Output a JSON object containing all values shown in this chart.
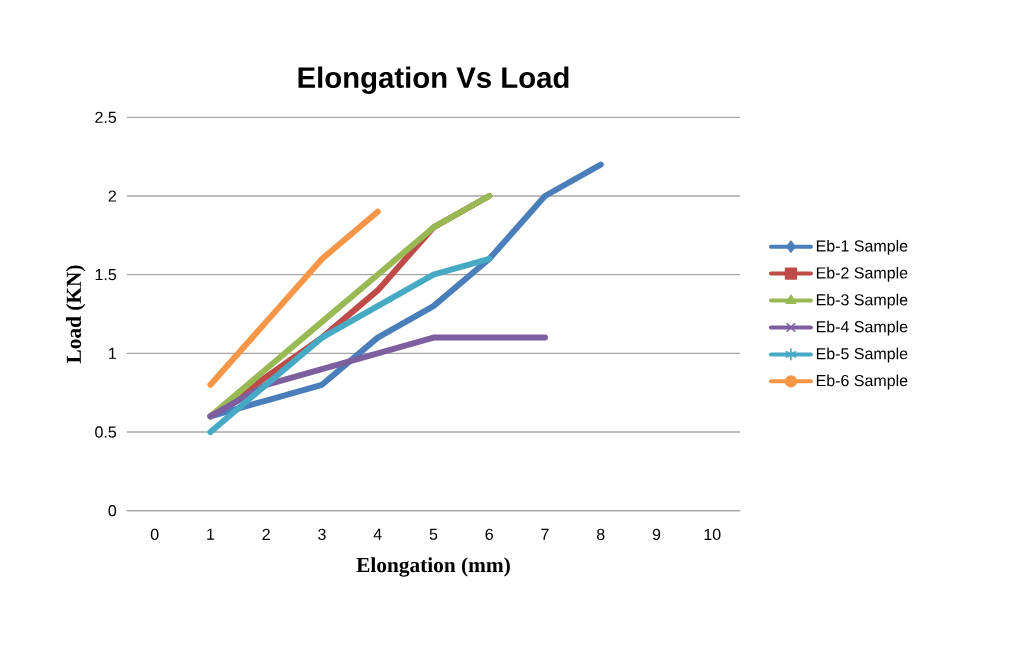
{
  "chart_data": {
    "type": "line",
    "title": "Elongation Vs Load",
    "xlabel": "Elongation (mm)",
    "ylabel": "Load (KN)",
    "categories": [
      "0",
      "1",
      "2",
      "3",
      "4",
      "5",
      "6",
      "7",
      "8",
      "9",
      "10"
    ],
    "series": [
      {
        "name": "Eb-1 Sample",
        "color": "#4a7ebb",
        "values": [
          null,
          0.6,
          0.7,
          0.8,
          1.1,
          1.3,
          1.6,
          2.0,
          2.2,
          null,
          null
        ]
      },
      {
        "name": "Eb-2 Sample",
        "color": "#be4b48",
        "values": [
          null,
          0.6,
          0.85,
          1.1,
          1.4,
          1.8,
          2.0,
          null,
          null,
          null,
          null
        ]
      },
      {
        "name": "Eb-3 Sample",
        "color": "#98b954",
        "values": [
          null,
          0.6,
          0.9,
          1.2,
          1.5,
          1.8,
          2.0,
          null,
          null,
          null,
          null
        ]
      },
      {
        "name": "Eb-4 Sample",
        "color": "#7d5fa0",
        "values": [
          null,
          0.6,
          0.8,
          0.9,
          1.0,
          1.1,
          1.1,
          1.1,
          null,
          null,
          null
        ]
      },
      {
        "name": "Eb-5 Sample",
        "color": "#46aac5",
        "values": [
          null,
          0.5,
          0.8,
          1.1,
          1.3,
          1.5,
          1.6,
          null,
          null,
          null,
          null
        ]
      },
      {
        "name": "Eb-6 Sample",
        "color": "#f79646",
        "values": [
          null,
          0.8,
          1.2,
          1.6,
          1.9,
          null,
          null,
          null,
          null,
          null,
          null
        ]
      }
    ],
    "ylim": [
      0,
      2.5
    ],
    "yticks": [
      0,
      0.5,
      1,
      1.5,
      2,
      2.5
    ],
    "grid": "y",
    "legend": "right"
  }
}
